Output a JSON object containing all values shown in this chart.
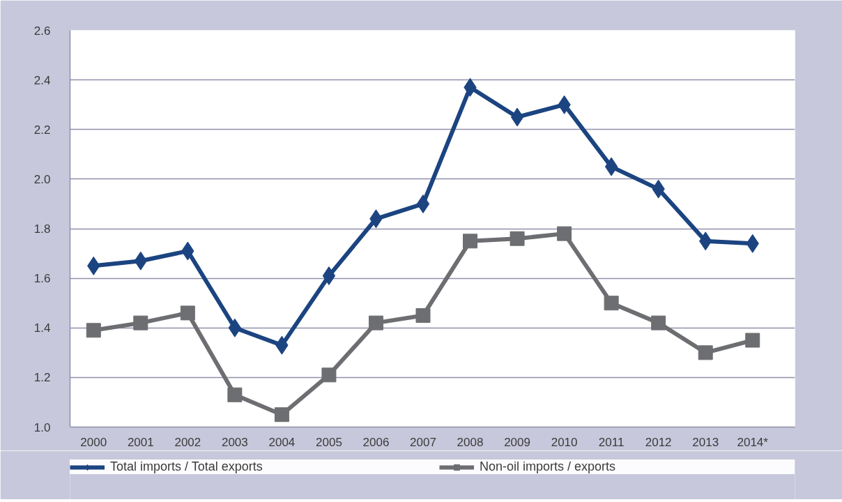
{
  "chart_data": {
    "type": "line",
    "categories": [
      "2000",
      "2001",
      "2002",
      "2003",
      "2004",
      "2005",
      "2006",
      "2007",
      "2008",
      "2009",
      "2010",
      "2011",
      "2012",
      "2013",
      "2014*"
    ],
    "series": [
      {
        "name": "Total imports / Total exports",
        "color": "#1b4480",
        "marker": "diamond",
        "values": [
          1.65,
          1.67,
          1.71,
          1.4,
          1.33,
          1.61,
          1.84,
          1.9,
          2.37,
          2.25,
          2.3,
          2.05,
          1.96,
          1.75,
          1.74
        ]
      },
      {
        "name": "Non-oil imports / exports",
        "color": "#6d6e71",
        "marker": "square",
        "values": [
          1.39,
          1.42,
          1.46,
          1.13,
          1.05,
          1.21,
          1.42,
          1.45,
          1.75,
          1.76,
          1.78,
          1.5,
          1.42,
          1.3,
          1.35
        ]
      }
    ],
    "ylim": [
      1.0,
      2.6
    ],
    "yticks": [
      {
        "value": 1,
        "label": "1.0"
      },
      1.2,
      1.4,
      1.6,
      1.8,
      {
        "value": 2,
        "label": "2.0"
      },
      2.2,
      2.4,
      2.6
    ],
    "grid": "y",
    "legend": "bottom",
    "line_style": "solid"
  }
}
